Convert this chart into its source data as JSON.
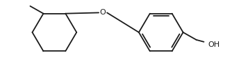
{
  "figure_width": 3.34,
  "figure_height": 0.93,
  "dpi": 100,
  "background_color": "#ffffff",
  "line_color": "#1a1a1a",
  "line_width": 1.3,
  "font_size": 8.0,
  "font_color": "#1a1a1a",
  "xlim": [
    0,
    334
  ],
  "ylim": [
    0,
    93
  ]
}
